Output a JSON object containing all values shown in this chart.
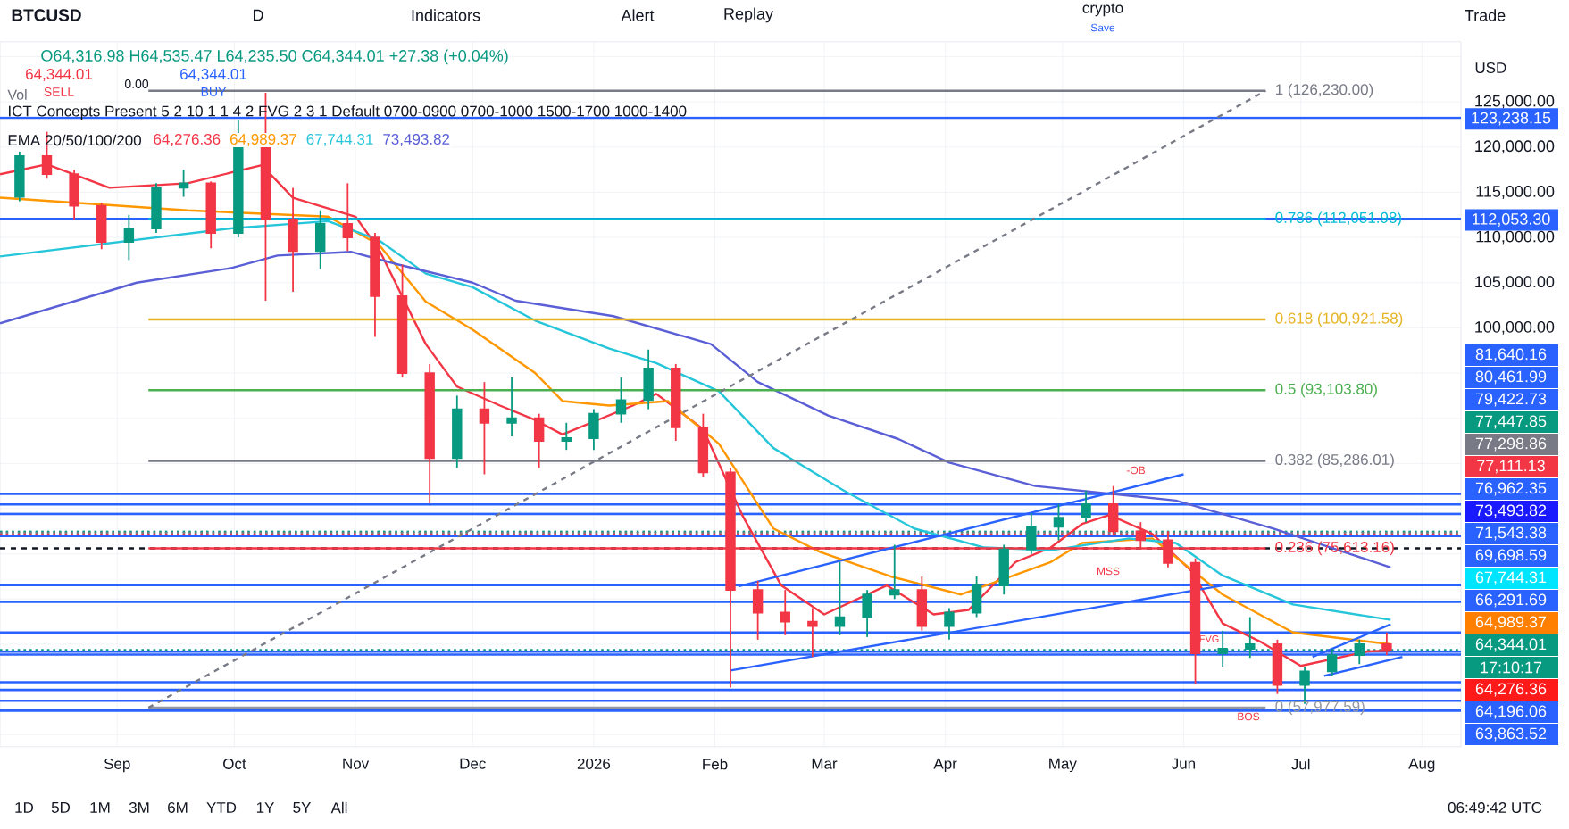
{
  "chart_data": {
    "type": "candlestick",
    "title": "BTCUSD",
    "subtitle": "O64,316.98 H64,535.47 L64,235.50 C64,344.01 +27.38 (+0.04%)",
    "x": [
      "2025-08-07",
      "2025-08-14",
      "2025-08-21",
      "2025-08-28",
      "2025-09-04",
      "2025-09-11",
      "2025-09-18",
      "2025-09-25",
      "2025-10-02",
      "2025-10-09",
      "2025-10-16",
      "2025-10-23",
      "2025-10-30",
      "2025-11-06",
      "2025-11-13",
      "2025-11-20",
      "2025-11-27",
      "2025-12-04",
      "2025-12-11",
      "2025-12-18",
      "2025-12-25",
      "2026-01-01",
      "2026-01-08",
      "2026-01-15",
      "2026-01-22",
      "2026-01-29",
      "2026-02-05",
      "2026-02-12",
      "2026-02-19",
      "2026-02-26",
      "2026-03-05",
      "2026-03-12",
      "2026-03-19",
      "2026-03-26",
      "2026-04-02",
      "2026-04-09",
      "2026-04-16",
      "2026-04-23",
      "2026-04-30",
      "2026-05-07",
      "2026-05-14",
      "2026-05-21",
      "2026-05-28",
      "2026-06-04",
      "2026-06-11",
      "2026-06-18",
      "2026-06-25",
      "2026-07-02",
      "2026-07-09",
      "2026-07-16",
      "2026-07-23"
    ],
    "ohlc": [
      [
        114500,
        119500,
        114000,
        119000
      ],
      [
        119000,
        121700,
        116500,
        117000
      ],
      [
        117000,
        117500,
        112000,
        113500
      ],
      [
        113500,
        113800,
        108700,
        109500
      ],
      [
        109500,
        112500,
        107500,
        111000
      ],
      [
        111000,
        116000,
        110500,
        115500
      ],
      [
        115500,
        117500,
        114500,
        116000
      ],
      [
        116000,
        116200,
        108800,
        110500
      ],
      [
        110500,
        123000,
        110000,
        120000
      ],
      [
        120000,
        126000,
        103000,
        112000
      ],
      [
        112000,
        115500,
        104000,
        108500
      ],
      [
        108500,
        113000,
        106500,
        111500
      ],
      [
        111500,
        116000,
        108500,
        110000
      ],
      [
        110000,
        110500,
        99000,
        103500
      ],
      [
        103500,
        107000,
        94500,
        95000
      ],
      [
        95000,
        96000,
        80600,
        85600
      ],
      [
        85600,
        92500,
        84500,
        91000
      ],
      [
        91000,
        94000,
        83800,
        89500
      ],
      [
        89500,
        94500,
        88000,
        90000
      ],
      [
        90000,
        90500,
        84500,
        87500
      ],
      [
        87500,
        89500,
        86500,
        87800
      ],
      [
        87800,
        91000,
        86500,
        90500
      ],
      [
        90500,
        94500,
        89500,
        92000
      ],
      [
        92000,
        97600,
        91000,
        95500
      ],
      [
        95500,
        96000,
        87500,
        89000
      ],
      [
        89000,
        90500,
        83500,
        84000
      ],
      [
        84000,
        84500,
        60200,
        71000
      ],
      [
        71000,
        72000,
        65500,
        68500
      ],
      [
        68500,
        71000,
        66000,
        67500
      ],
      [
        67500,
        69000,
        63600,
        67000
      ],
      [
        67000,
        74100,
        66000,
        68000
      ],
      [
        68000,
        71000,
        65800,
        70500
      ],
      [
        70500,
        76000,
        70000,
        71000
      ],
      [
        71000,
        72500,
        66500,
        67000
      ],
      [
        67000,
        69000,
        65500,
        68500
      ],
      [
        68500,
        72500,
        68000,
        71500
      ],
      [
        71500,
        76000,
        70500,
        75500
      ],
      [
        75500,
        79500,
        75000,
        78000
      ],
      [
        78000,
        80500,
        76500,
        79000
      ],
      [
        79000,
        82000,
        78500,
        80500
      ],
      [
        80500,
        82500,
        77000,
        77500
      ],
      [
        77500,
        78500,
        75500,
        76500
      ],
      [
        76500,
        77500,
        73500,
        74000
      ],
      [
        74000,
        74500,
        60600,
        64000
      ],
      [
        64000,
        66500,
        62500,
        64500
      ],
      [
        64500,
        68000,
        63500,
        65000
      ],
      [
        65000,
        65500,
        59500,
        60500
      ],
      [
        60500,
        62500,
        58400,
        62000
      ],
      [
        62000,
        64500,
        61500,
        63800
      ],
      [
        63800,
        65500,
        62800,
        65000
      ],
      [
        65000,
        66300,
        63800,
        64344.01
      ]
    ],
    "colors": [
      "#089981",
      "#f23645",
      "#f23645",
      "#f23645",
      "#089981",
      "#089981",
      "#089981",
      "#f23645",
      "#089981",
      "#f23645",
      "#f23645",
      "#089981",
      "#f23645",
      "#f23645",
      "#f23645",
      "#f23645",
      "#089981",
      "#f23645",
      "#089981",
      "#f23645",
      "#089981",
      "#089981",
      "#089981",
      "#089981",
      "#f23645",
      "#f23645",
      "#f23645",
      "#f23645",
      "#f23645",
      "#f23645",
      "#089981",
      "#089981",
      "#089981",
      "#f23645",
      "#089981",
      "#089981",
      "#089981",
      "#089981",
      "#089981",
      "#089981",
      "#f23645",
      "#f23645",
      "#f23645",
      "#f23645",
      "#089981",
      "#089981",
      "#f23645",
      "#089981",
      "#089981",
      "#089981",
      "#f23645"
    ],
    "series": [
      {
        "type": "line",
        "color": "#f23645",
        "x": [
          "2025-08-02",
          "2025-08-14",
          "2025-08-30",
          "2025-09-19",
          "2025-10-08",
          "2025-10-16",
          "2025-11-01",
          "2025-11-07",
          "2025-11-19",
          "2025-11-27",
          "2025-12-08",
          "2025-12-17",
          "2025-12-24",
          "2026-01-11",
          "2026-01-17",
          "2026-01-29",
          "2026-02-08",
          "2026-02-18",
          "2026-03-01",
          "2026-03-17",
          "2026-03-29",
          "2026-04-07",
          "2026-04-19",
          "2026-04-28",
          "2026-05-06",
          "2026-05-13",
          "2026-05-24",
          "2026-06-03",
          "2026-06-11",
          "2026-06-21",
          "2026-07-01",
          "2026-07-18",
          "2026-07-24"
        ],
        "values": [
          117000,
          118100,
          115500,
          116000,
          118000,
          114400,
          112300,
          108700,
          98200,
          93500,
          91400,
          89800,
          88200,
          91400,
          92700,
          88800,
          79300,
          71500,
          68300,
          71500,
          68300,
          68800,
          74100,
          75700,
          78300,
          79300,
          77200,
          73100,
          67300,
          65200,
          62600,
          64200,
          64300
        ]
      },
      {
        "type": "line",
        "color": "#ff9800",
        "x": [
          "2025-08-02",
          "2025-09-19",
          "2025-10-25",
          "2025-11-07",
          "2025-11-19",
          "2025-12-01",
          "2025-12-17",
          "2025-12-24",
          "2026-01-05",
          "2026-01-20",
          "2026-02-02",
          "2026-02-16",
          "2026-02-28",
          "2026-03-18",
          "2026-04-05",
          "2026-04-28",
          "2026-05-06",
          "2026-05-24",
          "2026-06-11",
          "2026-06-29",
          "2026-07-24"
        ],
        "values": [
          114400,
          113000,
          112300,
          109200,
          102900,
          99800,
          95000,
          91900,
          91400,
          91900,
          87200,
          77800,
          75200,
          72500,
          70500,
          74100,
          76200,
          76700,
          70500,
          66300,
          65000
        ]
      },
      {
        "type": "line",
        "color": "#26c6da",
        "x": [
          "2025-08-02",
          "2025-09-30",
          "2025-10-25",
          "2025-11-07",
          "2025-11-19",
          "2025-12-01",
          "2025-12-17",
          "2026-01-05",
          "2026-01-17",
          "2026-02-02",
          "2026-02-16",
          "2026-03-06",
          "2026-03-24",
          "2026-04-11",
          "2026-04-28",
          "2026-05-18",
          "2026-05-30",
          "2026-06-11",
          "2026-06-29",
          "2026-07-24"
        ],
        "values": [
          107900,
          111000,
          111800,
          109700,
          106000,
          104500,
          100800,
          97700,
          96100,
          93000,
          86700,
          82000,
          77800,
          75700,
          75400,
          76700,
          76200,
          72600,
          69400,
          67700
        ]
      },
      {
        "type": "line",
        "color": "#5b5fd6",
        "x": [
          "2025-08-02",
          "2025-09-06",
          "2025-09-30",
          "2025-10-12",
          "2025-10-31",
          "2025-11-12",
          "2025-12-01",
          "2025-12-12",
          "2026-01-06",
          "2026-01-31",
          "2026-02-12",
          "2026-03-02",
          "2026-03-20",
          "2026-04-02",
          "2026-04-24",
          "2026-05-30",
          "2026-06-24",
          "2026-07-24"
        ],
        "values": [
          100500,
          105000,
          106600,
          108000,
          108400,
          107000,
          105000,
          103000,
          101300,
          98200,
          94000,
          90300,
          87700,
          85100,
          82500,
          80900,
          77800,
          73500
        ]
      },
      {
        "type": "line",
        "color": "#787b86",
        "x": [
          "2025-09-09",
          "2026-06-22"
        ],
        "values": [
          126230,
          126230
        ]
      },
      {
        "type": "line",
        "color": "#00bcd4",
        "x": [
          "2025-09-09",
          "2026-06-22"
        ],
        "values": [
          112051.98,
          112051.98
        ]
      },
      {
        "type": "line",
        "color": "#e6b422",
        "x": [
          "2025-09-09",
          "2026-06-22"
        ],
        "values": [
          100921.58,
          100921.58
        ]
      },
      {
        "type": "line",
        "color": "#4caf50",
        "x": [
          "2025-09-09",
          "2026-06-22"
        ],
        "values": [
          93103.8,
          93103.8
        ]
      },
      {
        "type": "line",
        "color": "#787b86",
        "x": [
          "2025-09-09",
          "2026-06-22"
        ],
        "values": [
          85286.01,
          85286.01
        ]
      },
      {
        "type": "line",
        "color": "#f23645",
        "x": [
          "2025-09-09",
          "2026-06-22"
        ],
        "values": [
          75613.16,
          75613.16
        ]
      },
      {
        "type": "line",
        "color": "#9598a1",
        "x": [
          "2025-09-09",
          "2026-06-22"
        ],
        "values": [
          57977.59,
          57977.59
        ]
      },
      {
        "type": "line",
        "color": "#787b86",
        "line_style": "dashed",
        "x": [
          "2025-09-09",
          "2026-06-22"
        ],
        "values": [
          57977.59,
          126230
        ]
      },
      {
        "type": "line",
        "color": "#2962ff",
        "x": [
          "2026-02-07",
          "2026-06-01"
        ],
        "values": [
          71400,
          83800
        ]
      },
      {
        "type": "line",
        "color": "#2962ff",
        "x": [
          "2026-02-05",
          "2026-06-11"
        ],
        "values": [
          62100,
          71500
        ]
      },
      {
        "type": "line",
        "color": "#2962ff",
        "x": [
          "2026-07-04",
          "2026-07-24"
        ],
        "values": [
          63600,
          67200
        ]
      },
      {
        "type": "line",
        "color": "#2962ff",
        "x": [
          "2026-07-07",
          "2026-07-27"
        ],
        "values": [
          61500,
          63600
        ]
      }
    ],
    "xlim": [
      "2025-08-02",
      "2026-08-11"
    ],
    "xticks": [
      {
        "value": "2025-09-01",
        "label": "Sep"
      },
      {
        "value": "2025-10-01",
        "label": "Oct"
      },
      {
        "value": "2025-11-01",
        "label": "Nov"
      },
      {
        "value": "2025-12-01",
        "label": "Dec"
      },
      {
        "value": "2026-01-01",
        "label": "2026"
      },
      {
        "value": "2026-02-01",
        "label": "Feb"
      },
      {
        "value": "2026-03-01",
        "label": "Mar"
      },
      {
        "value": "2026-04-01",
        "label": "Apr"
      },
      {
        "value": "2026-05-01",
        "label": "May"
      },
      {
        "value": "2026-06-01",
        "label": "Jun"
      },
      {
        "value": "2026-07-01",
        "label": "Jul"
      },
      {
        "value": "2026-08-01",
        "label": "Aug"
      }
    ],
    "ylim": [
      53660,
      131650
    ],
    "yticks": [
      {
        "value": 55000,
        "label": null
      },
      {
        "value": 60000,
        "label": null
      },
      {
        "value": 65000,
        "label": null
      },
      {
        "value": 70000,
        "label": null
      },
      {
        "value": 75000,
        "label": null
      },
      {
        "value": 80000,
        "label": null
      },
      {
        "value": 85000,
        "label": null
      },
      {
        "value": 90000,
        "label": null
      },
      {
        "value": 95000,
        "label": null
      },
      {
        "value": 100000,
        "label": "100,000.00"
      },
      {
        "value": 105000,
        "label": "105,000.00"
      },
      {
        "value": 110000,
        "label": "110,000.00"
      },
      {
        "value": 115000,
        "label": "115,000.00"
      },
      {
        "value": 120000,
        "label": "120,000.00"
      },
      {
        "value": 125000,
        "label": "125,000.00"
      },
      {
        "value": 130000,
        "label": null
      }
    ],
    "grid": true,
    "ref_lines": [
      {
        "axis": "y",
        "value": 123238.15,
        "label": "123,238.15",
        "color": "#2962ff"
      },
      {
        "axis": "y",
        "value": 112053.3,
        "label": "112,053.30",
        "color": "#2962ff"
      },
      {
        "axis": "y",
        "value": 81640.16,
        "color": "#2962ff"
      },
      {
        "axis": "y",
        "value": 80461.99,
        "color": "#2962ff"
      },
      {
        "axis": "y",
        "value": 79422.73,
        "color": "#2962ff"
      },
      {
        "axis": "y",
        "value": 77447.85,
        "color": "#089981",
        "line_style": "dotted"
      },
      {
        "axis": "y",
        "value": 77298.86,
        "color": "#787b86",
        "line_style": "dotted"
      },
      {
        "axis": "y",
        "value": 77111.13,
        "color": "#f23645",
        "line_style": "dotted"
      },
      {
        "axis": "y",
        "value": 76962.35,
        "color": "#2962ff"
      },
      {
        "axis": "y",
        "value": 71543.38,
        "color": "#2962ff"
      },
      {
        "axis": "y",
        "value": 69698.59,
        "color": "#2962ff"
      },
      {
        "axis": "y",
        "value": 66291.69,
        "color": "#2962ff"
      },
      {
        "axis": "y",
        "value": 64344.01,
        "color": "#089981",
        "line_style": "dotted"
      },
      {
        "axis": "y",
        "value": 64196.06,
        "color": "#2962ff"
      },
      {
        "axis": "y",
        "value": 63863.52,
        "color": "#2962ff"
      },
      {
        "axis": "y",
        "value": 75613.16,
        "color": "#131722",
        "line_style": "dashed"
      },
      {
        "axis": "y",
        "value": 60800,
        "color": "#2962ff"
      },
      {
        "axis": "y",
        "value": 59950,
        "color": "#2962ff"
      },
      {
        "axis": "y",
        "value": 58750,
        "color": "#2962ff"
      },
      {
        "axis": "y",
        "value": 57650,
        "color": "#2962ff"
      }
    ],
    "annotations": [
      "D",
      "Indicators",
      "Alert",
      "Replay",
      "crypto",
      "Save",
      "Trade",
      "USD",
      "64,344.01",
      "SELL",
      "0.00",
      "64,344.01",
      "BUY",
      "Vol",
      "ICT Concepts Present 5 2 10 1 1 4 2 FVG 2 3 1 Default 0700-0900 0700-1000 1500-1700 1000-1400",
      "EMA 20/50/100/200",
      "64,276.36",
      "64,989.37",
      "67,744.31",
      "73,493.82",
      "1D",
      "5D",
      "1M",
      "3M",
      "6M",
      "YTD",
      "1Y",
      "5Y",
      "All",
      "06:49:42 UTC",
      "81,640.16",
      "80,461.99",
      "79,422.73",
      "77,447.85",
      "77,298.86",
      "77,111.13",
      "76,962.35",
      "73,493.82",
      "71,543.38",
      "69,698.59",
      "67,744.31",
      "66,291.69",
      "64,989.37",
      "64,344.01",
      "17:10:17",
      "64,276.36",
      "64,196.06",
      "63,863.52",
      "-OB",
      "MSS",
      "FVG",
      "BOS",
      {
        "text": "1 (126,230.00)",
        "x": "2026-06-22",
        "y": 126230
      },
      {
        "text": "0.786 (112,051.98)",
        "x": "2026-06-22",
        "y": 112051.98
      },
      {
        "text": "0.618 (100,921.58)",
        "x": "2026-06-22",
        "y": 100921.58
      },
      {
        "text": "0.5 (93,103.80)",
        "x": "2026-06-22",
        "y": 93103.8
      },
      {
        "text": "0.382 (85,286.01)",
        "x": "2026-06-22",
        "y": 85286.01
      },
      {
        "text": "0.236 (75,613.16)",
        "x": "2026-06-22",
        "y": 75613.16
      },
      {
        "text": "0 (57,977.59)",
        "x": "2026-06-22",
        "y": 57977.59
      }
    ]
  }
}
